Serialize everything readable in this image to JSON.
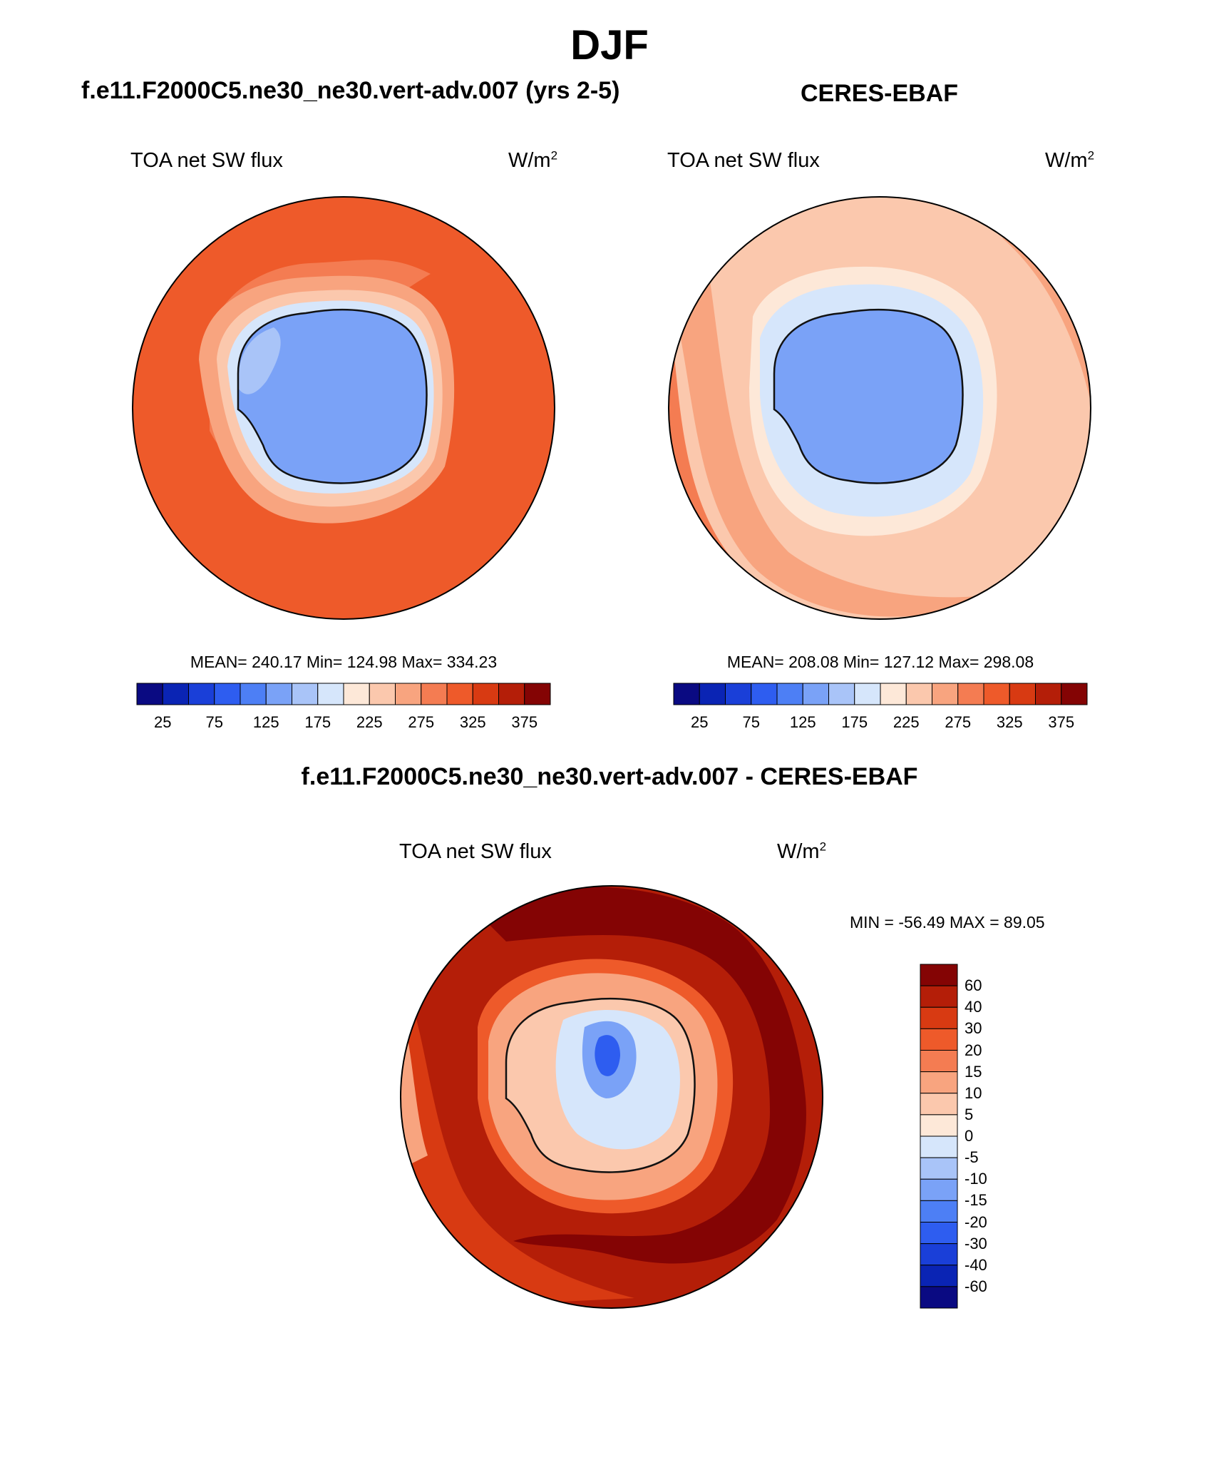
{
  "figure": {
    "season": "DJF",
    "model_title": "f.e11.F2000C5.ne30_ne30.vert-adv.007 (yrs 2-5)",
    "obs_title": "CERES-EBAF",
    "diff_title": "f.e11.F2000C5.ne30_ne30.vert-adv.007 - CERES-EBAF"
  },
  "panels": {
    "model": {
      "variable": "TOA net SW flux",
      "units": "W/m",
      "units_sup": "2",
      "mean_label": "MEAN= 240.17  Min= 124.98  Max= 334.23"
    },
    "obs": {
      "variable": "TOA net SW flux",
      "units": "W/m",
      "units_sup": "2",
      "mean_label": "MEAN= 208.08  Min= 127.12  Max= 298.08"
    },
    "diff": {
      "variable": "TOA net SW flux",
      "units": "W/m",
      "units_sup": "2",
      "minmax_label": "MIN = -56.49 MAX =  89.05"
    }
  },
  "chart_data": [
    {
      "type": "heatmap",
      "title": "f.e11.F2000C5.ne30_ne30.vert-adv.007 (yrs 2-5)",
      "variable": "TOA net SW flux",
      "units": "W/m2",
      "mean": 240.17,
      "min": 124.98,
      "max": 334.23,
      "colorbar_ticks": [
        "25",
        "75",
        "125",
        "175",
        "225",
        "275",
        "325",
        "375"
      ],
      "colorbar_colors": [
        "#0a0a82",
        "#0a24b4",
        "#1a3fd8",
        "#2e5df0",
        "#4d7ff5",
        "#7aa2f7",
        "#a9c4f8",
        "#d6e6fb",
        "#fde8d8",
        "#fbc8ad",
        "#f8a47f",
        "#f47c52",
        "#ee5a2a",
        "#d83a12",
        "#b41e08",
        "#840404"
      ]
    },
    {
      "type": "heatmap",
      "title": "CERES-EBAF",
      "variable": "TOA net SW flux",
      "units": "W/m2",
      "mean": 208.08,
      "min": 127.12,
      "max": 298.08,
      "colorbar_ticks": [
        "25",
        "75",
        "125",
        "175",
        "225",
        "275",
        "325",
        "375"
      ],
      "colorbar_colors": [
        "#0a0a82",
        "#0a24b4",
        "#1a3fd8",
        "#2e5df0",
        "#4d7ff5",
        "#7aa2f7",
        "#a9c4f8",
        "#d6e6fb",
        "#fde8d8",
        "#fbc8ad",
        "#f8a47f",
        "#f47c52",
        "#ee5a2a",
        "#d83a12",
        "#b41e08",
        "#840404"
      ]
    },
    {
      "type": "heatmap",
      "title": "f.e11.F2000C5.ne30_ne30.vert-adv.007 - CERES-EBAF",
      "variable": "TOA net SW flux",
      "units": "W/m2",
      "min": -56.49,
      "max": 89.05,
      "colorbar_ticks": [
        "60",
        "40",
        "30",
        "20",
        "15",
        "10",
        "5",
        "0",
        "-5",
        "-10",
        "-15",
        "-20",
        "-30",
        "-40",
        "-60"
      ],
      "colorbar_colors": [
        "#840404",
        "#b41e08",
        "#d83a12",
        "#ee5a2a",
        "#f47c52",
        "#f8a47f",
        "#fbc8ad",
        "#fde8d8",
        "#d6e6fb",
        "#a9c4f8",
        "#7aa2f7",
        "#4d7ff5",
        "#2e5df0",
        "#1a3fd8",
        "#0a24b4",
        "#0a0a82"
      ]
    }
  ]
}
